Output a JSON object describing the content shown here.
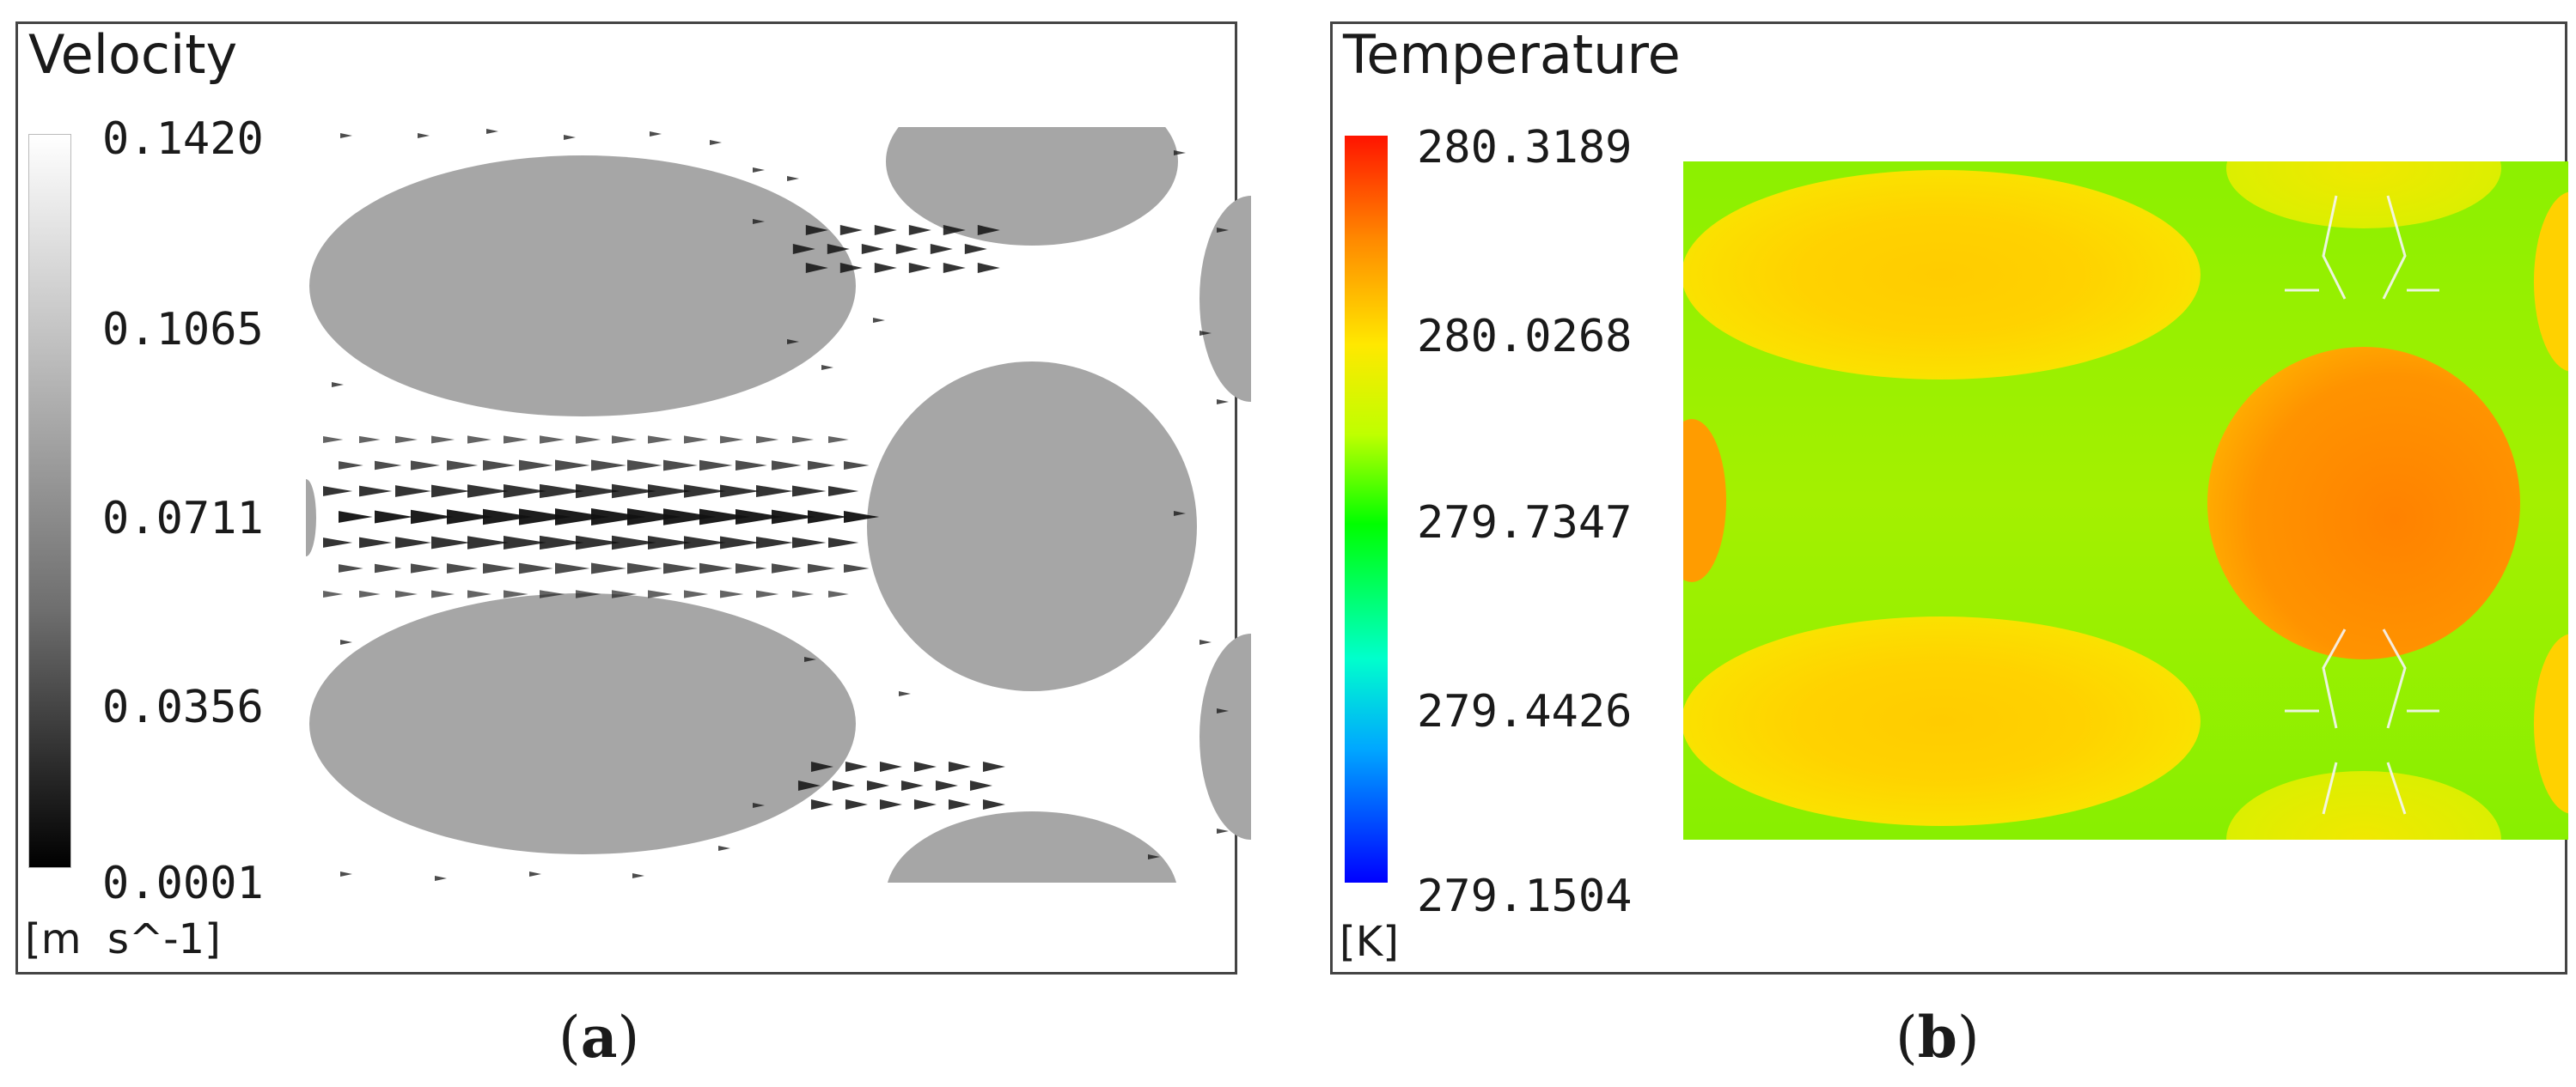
{
  "panel_a": {
    "title": "Velocity",
    "ticks": [
      "0.1420",
      "0.1065",
      "0.0711",
      "0.0356",
      "0.0001"
    ],
    "unit": "[m  s^-1]",
    "label": "a",
    "colormap": [
      "#ffffff",
      "#000000"
    ],
    "solid_fill": "#a6a6a6",
    "vector_color": "#111111"
  },
  "panel_b": {
    "title": "Temperature",
    "ticks": [
      "280.3189",
      "280.0268",
      "279.7347",
      "279.4426",
      "279.1504"
    ],
    "unit": "[K]",
    "label": "b",
    "colormap": [
      "#ff1400",
      "#ff8a00",
      "#ffe800",
      "#bfff00",
      "#00ff00",
      "#00ffcc",
      "#00a8ff",
      "#0000ff"
    ]
  }
}
